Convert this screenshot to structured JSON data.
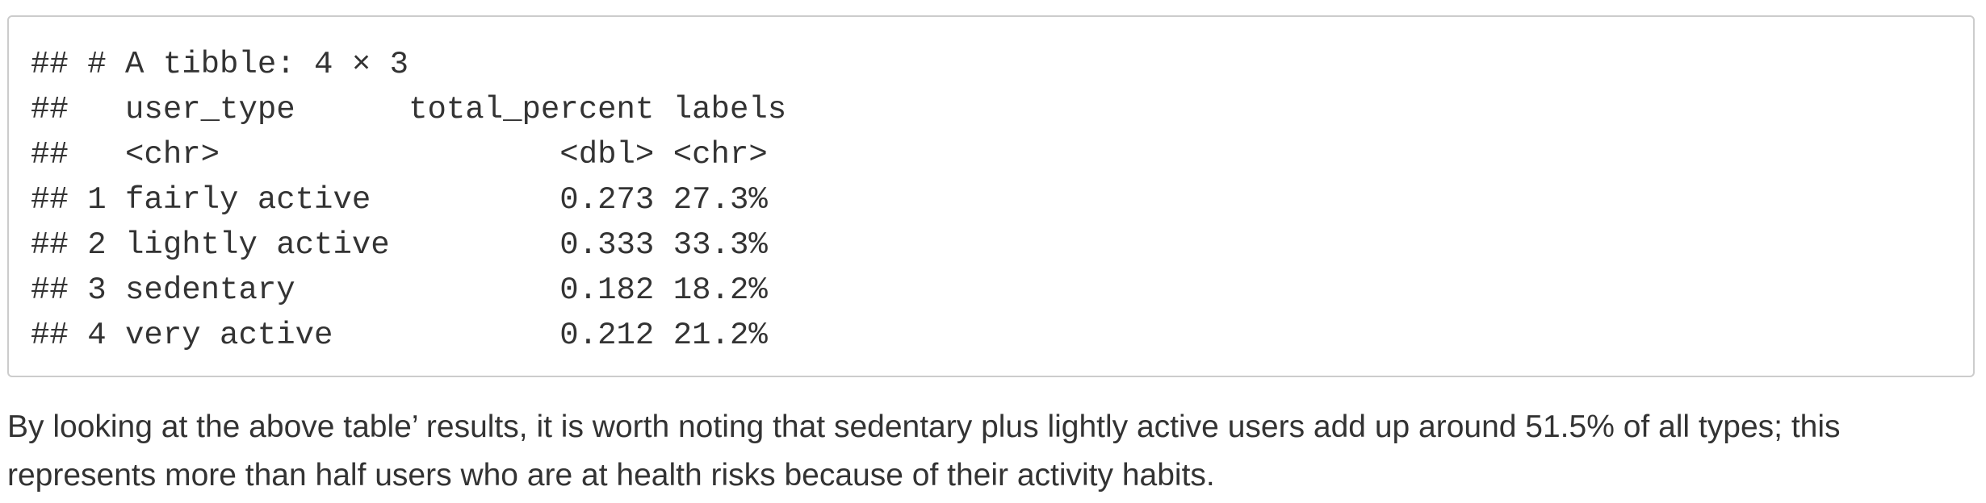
{
  "output_block": {
    "lines": [
      "## # A tibble: 4 × 3",
      "##   user_type      total_percent labels",
      "##   <chr>                  <dbl> <chr> ",
      "## 1 fairly active          0.273 27.3% ",
      "## 2 lightly active         0.333 33.3% ",
      "## 3 sedentary              0.182 18.2% ",
      "## 4 very active            0.212 21.2% "
    ]
  },
  "paragraph": {
    "text": "By looking at the above table’ results, it is worth noting that sedentary plus lightly active users add up around 51.5% of all types; this represents more than half users who are at health risks because of their activity habits."
  }
}
